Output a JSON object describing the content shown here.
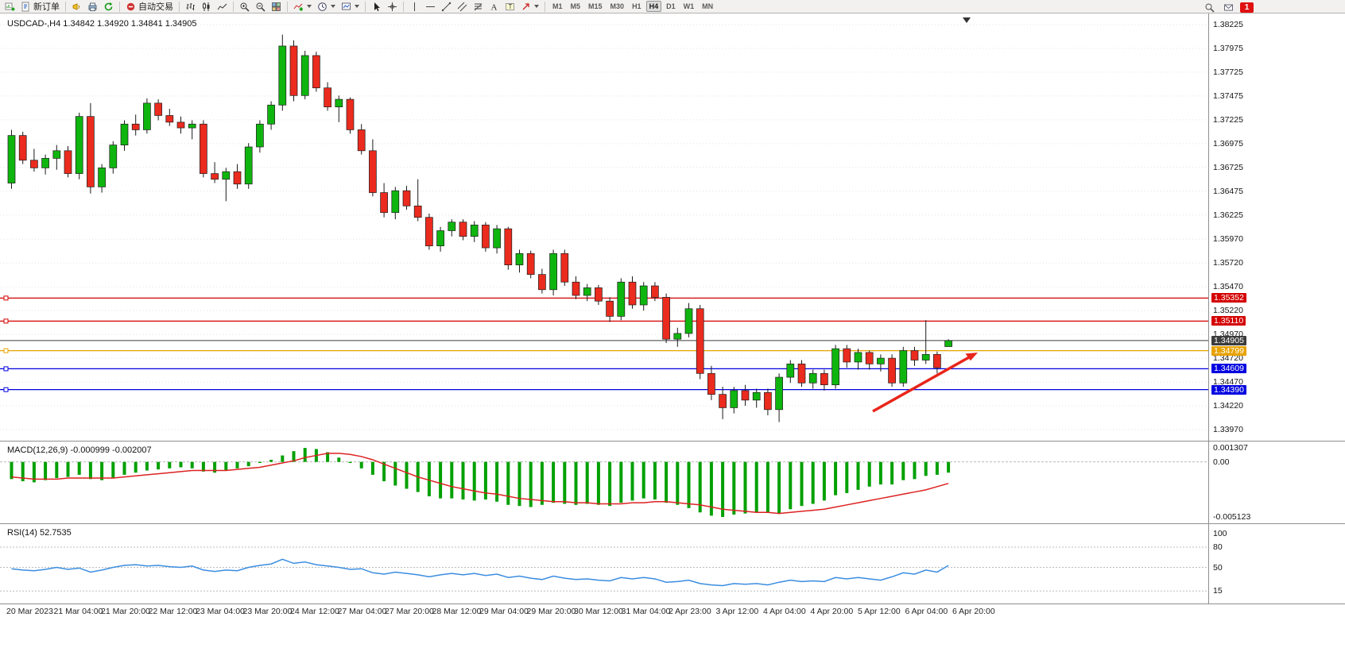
{
  "app": {
    "notification_count": "1"
  },
  "toolbar": {
    "new_order_label": "新订单",
    "autotrading_label": "自动交易",
    "timeframes": [
      "M1",
      "M5",
      "M15",
      "M30",
      "H1",
      "H4",
      "D1",
      "W1",
      "MN"
    ],
    "active_timeframe": "H4",
    "icons": [
      "new-chart-icon",
      "new-order-icon",
      "alerts-icon",
      "print-icon",
      "refresh-icon",
      "autotrading-icon",
      "bar-chart-icon",
      "candlestick-chart-icon",
      "line-chart-icon",
      "zoom-in-icon",
      "zoom-out-icon",
      "tile-windows-icon",
      "indicators-icon",
      "periods-icon",
      "templates-icon",
      "cursor-icon",
      "crosshair-icon",
      "vertical-line-icon",
      "horizontal-line-icon",
      "trendline-icon",
      "channel-icon",
      "fibonacci-icon",
      "text-icon",
      "text-label-icon",
      "arrows-icon",
      "search-icon",
      "mail-icon"
    ]
  },
  "chart": {
    "title": "USDCAD-,H4 1.34842 1.34920 1.34841 1.34905",
    "symbol": "USDCAD-",
    "period": "H4",
    "ohlc": {
      "open": "1.34842",
      "high": "1.34920",
      "low": "1.34841",
      "close": "1.34905"
    }
  },
  "indicators": {
    "macd_label": "MACD(12,26,9) -0.000999 -0.002007",
    "rsi_label": "RSI(14) 52.7535"
  },
  "time_axis": [
    "20 Mar 2023",
    "21 Mar 04:00",
    "21 Mar 20:00",
    "22 Mar 12:00",
    "23 Mar 04:00",
    "23 Mar 20:00",
    "24 Mar 12:00",
    "27 Mar 04:00",
    "27 Mar 20:00",
    "28 Mar 12:00",
    "29 Mar 04:00",
    "29 Mar 20:00",
    "30 Mar 12:00",
    "31 Mar 04:00",
    "2 Apr 23:00",
    "3 Apr 12:00",
    "4 Apr 04:00",
    "4 Apr 20:00",
    "5 Apr 12:00",
    "6 Apr 04:00",
    "6 Apr 20:00"
  ],
  "chart_data": [
    {
      "type": "candlestick",
      "symbol": "USDCAD-",
      "timeframe": "H4",
      "ylim": [
        1.3397,
        1.38225
      ],
      "scale_labels": [
        "1.38225",
        "1.37975",
        "1.37725",
        "1.37475",
        "1.37225",
        "1.36975",
        "1.36725",
        "1.36475",
        "1.36225",
        "1.35970",
        "1.35720",
        "1.35470",
        "1.35220",
        "1.34970",
        "1.34720",
        "1.34470",
        "1.34220",
        "1.33970"
      ],
      "up_color": "#0fb50f",
      "down_color": "#ea2b1e",
      "wick_color": "#1a1a1a",
      "hlines": [
        {
          "price": 1.35352,
          "label": "1.35352",
          "color": "#d40000"
        },
        {
          "price": 1.3511,
          "label": "1.35110",
          "color": "#d40000"
        },
        {
          "price": 1.34905,
          "label": "1.34905",
          "color": "#3c3c3c",
          "role": "bid"
        },
        {
          "price": 1.34799,
          "label": "1.34799",
          "color": "#e8a200"
        },
        {
          "price": 1.34609,
          "label": "1.34609",
          "color": "#0000e0"
        },
        {
          "price": 1.3439,
          "label": "1.34390",
          "color": "#0000e0"
        }
      ],
      "arrow_annotation": {
        "color": "#e8251b",
        "direction": "up-right"
      },
      "candles": [
        [
          1.3656,
          1.3712,
          1.365,
          1.3706
        ],
        [
          1.3706,
          1.371,
          1.3676,
          1.368
        ],
        [
          1.368,
          1.3692,
          1.3668,
          1.3672
        ],
        [
          1.3672,
          1.3686,
          1.3665,
          1.3682
        ],
        [
          1.3682,
          1.3696,
          1.367,
          1.369
        ],
        [
          1.369,
          1.3695,
          1.3662,
          1.3666
        ],
        [
          1.3666,
          1.373,
          1.366,
          1.3726
        ],
        [
          1.3726,
          1.374,
          1.3645,
          1.3652
        ],
        [
          1.3652,
          1.3676,
          1.3646,
          1.3672
        ],
        [
          1.3672,
          1.37,
          1.3666,
          1.3696
        ],
        [
          1.3696,
          1.3722,
          1.369,
          1.3718
        ],
        [
          1.3718,
          1.3728,
          1.3706,
          1.3712
        ],
        [
          1.3712,
          1.3745,
          1.3708,
          1.374
        ],
        [
          1.374,
          1.3744,
          1.3722,
          1.3727
        ],
        [
          1.3727,
          1.3734,
          1.3716,
          1.372
        ],
        [
          1.372,
          1.3726,
          1.3708,
          1.3714
        ],
        [
          1.3714,
          1.3722,
          1.3702,
          1.3718
        ],
        [
          1.3718,
          1.3722,
          1.3662,
          1.3666
        ],
        [
          1.3666,
          1.3678,
          1.3656,
          1.366
        ],
        [
          1.366,
          1.3672,
          1.3637,
          1.3668
        ],
        [
          1.3668,
          1.3676,
          1.365,
          1.3655
        ],
        [
          1.3655,
          1.3698,
          1.365,
          1.3694
        ],
        [
          1.3694,
          1.3722,
          1.3688,
          1.3718
        ],
        [
          1.3718,
          1.3742,
          1.3712,
          1.3738
        ],
        [
          1.3738,
          1.3812,
          1.3732,
          1.38
        ],
        [
          1.38,
          1.3806,
          1.3742,
          1.3748
        ],
        [
          1.3748,
          1.3795,
          1.3744,
          1.379
        ],
        [
          1.379,
          1.3794,
          1.3752,
          1.3756
        ],
        [
          1.3756,
          1.3762,
          1.3732,
          1.3736
        ],
        [
          1.3736,
          1.3748,
          1.372,
          1.3744
        ],
        [
          1.3744,
          1.3746,
          1.3708,
          1.3712
        ],
        [
          1.3712,
          1.3718,
          1.3686,
          1.369
        ],
        [
          1.369,
          1.3702,
          1.3642,
          1.3646
        ],
        [
          1.3646,
          1.3656,
          1.362,
          1.3625
        ],
        [
          1.3625,
          1.3652,
          1.3618,
          1.3648
        ],
        [
          1.3648,
          1.3653,
          1.3628,
          1.3632
        ],
        [
          1.3632,
          1.366,
          1.3616,
          1.362
        ],
        [
          1.362,
          1.3624,
          1.3586,
          1.359
        ],
        [
          1.359,
          1.361,
          1.3584,
          1.3606
        ],
        [
          1.3606,
          1.3618,
          1.36,
          1.3615
        ],
        [
          1.3615,
          1.3618,
          1.3596,
          1.36
        ],
        [
          1.36,
          1.3616,
          1.3594,
          1.3612
        ],
        [
          1.3612,
          1.3615,
          1.3584,
          1.3588
        ],
        [
          1.3588,
          1.3612,
          1.3582,
          1.3608
        ],
        [
          1.3608,
          1.361,
          1.3565,
          1.357
        ],
        [
          1.357,
          1.3586,
          1.3562,
          1.3582
        ],
        [
          1.3582,
          1.3585,
          1.3556,
          1.356
        ],
        [
          1.356,
          1.3566,
          1.354,
          1.3544
        ],
        [
          1.3544,
          1.3586,
          1.3538,
          1.3582
        ],
        [
          1.3582,
          1.3586,
          1.3548,
          1.3552
        ],
        [
          1.3552,
          1.3558,
          1.3534,
          1.3538
        ],
        [
          1.3538,
          1.355,
          1.3532,
          1.3546
        ],
        [
          1.3546,
          1.3549,
          1.3528,
          1.3532
        ],
        [
          1.3532,
          1.3536,
          1.351,
          1.3516
        ],
        [
          1.3516,
          1.3556,
          1.3512,
          1.3552
        ],
        [
          1.3552,
          1.3558,
          1.3524,
          1.3528
        ],
        [
          1.3528,
          1.3552,
          1.3522,
          1.3548
        ],
        [
          1.3548,
          1.3552,
          1.3532,
          1.3536
        ],
        [
          1.3536,
          1.354,
          1.3488,
          1.3492
        ],
        [
          1.3492,
          1.3504,
          1.3484,
          1.3498
        ],
        [
          1.3498,
          1.353,
          1.3494,
          1.3524
        ],
        [
          1.3524,
          1.3528,
          1.345,
          1.3456
        ],
        [
          1.3456,
          1.3464,
          1.3428,
          1.3434
        ],
        [
          1.3434,
          1.3442,
          1.3408,
          1.342
        ],
        [
          1.342,
          1.3442,
          1.3414,
          1.3438
        ],
        [
          1.3438,
          1.3444,
          1.3422,
          1.3428
        ],
        [
          1.3428,
          1.344,
          1.342,
          1.3436
        ],
        [
          1.3436,
          1.344,
          1.3412,
          1.3418
        ],
        [
          1.3418,
          1.3456,
          1.3405,
          1.3452
        ],
        [
          1.3452,
          1.347,
          1.3446,
          1.3466
        ],
        [
          1.3466,
          1.347,
          1.3442,
          1.3446
        ],
        [
          1.3446,
          1.346,
          1.344,
          1.3456
        ],
        [
          1.3456,
          1.346,
          1.3438,
          1.3444
        ],
        [
          1.3444,
          1.3486,
          1.344,
          1.3482
        ],
        [
          1.3482,
          1.3486,
          1.3462,
          1.3468
        ],
        [
          1.3468,
          1.3482,
          1.346,
          1.3478
        ],
        [
          1.3478,
          1.348,
          1.346,
          1.3466
        ],
        [
          1.3466,
          1.3476,
          1.3458,
          1.3472
        ],
        [
          1.3472,
          1.3476,
          1.3442,
          1.3446
        ],
        [
          1.3446,
          1.3484,
          1.3442,
          1.348
        ],
        [
          1.348,
          1.3484,
          1.3464,
          1.347
        ],
        [
          1.347,
          1.3512,
          1.3466,
          1.3476
        ],
        [
          1.3476,
          1.3479,
          1.3456,
          1.3462
        ],
        [
          1.34842,
          1.3492,
          1.34841,
          1.34905
        ]
      ]
    },
    {
      "type": "bar+line",
      "name": "MACD(12,26,9)",
      "current_values": [
        "-0.000999",
        "-0.002007"
      ],
      "scale_labels": [
        "0.001307",
        "0.00",
        "-0.005123"
      ],
      "ylim": [
        -0.005123,
        0.001307
      ],
      "histogram_color": "#00a000",
      "signal_color": "#dd2222",
      "histogram": [
        -0.0016,
        -0.0018,
        -0.0019,
        -0.0017,
        -0.0015,
        -0.0014,
        -0.0012,
        -0.0016,
        -0.0017,
        -0.0015,
        -0.0012,
        -0.001,
        -0.0008,
        -0.0007,
        -0.0006,
        -0.0005,
        -0.0006,
        -0.0009,
        -0.001,
        -0.0008,
        -0.0006,
        -0.0004,
        -0.0001,
        0.0002,
        0.0006,
        0.001,
        0.0013,
        0.0012,
        0.0009,
        0.0004,
        -0.0001,
        -0.0006,
        -0.0012,
        -0.0018,
        -0.0022,
        -0.0025,
        -0.0028,
        -0.0032,
        -0.0034,
        -0.0034,
        -0.0035,
        -0.0036,
        -0.0035,
        -0.0037,
        -0.004,
        -0.0041,
        -0.0042,
        -0.004,
        -0.0038,
        -0.0039,
        -0.004,
        -0.0039,
        -0.004,
        -0.0041,
        -0.0038,
        -0.0036,
        -0.0034,
        -0.0035,
        -0.0038,
        -0.004,
        -0.0043,
        -0.0047,
        -0.005,
        -0.005123,
        -0.0049,
        -0.0048,
        -0.0047,
        -0.0047,
        -0.0048,
        -0.0044,
        -0.0041,
        -0.0039,
        -0.0036,
        -0.0031,
        -0.0029,
        -0.0026,
        -0.0023,
        -0.0021,
        -0.0021,
        -0.0017,
        -0.0016,
        -0.0013,
        -0.0012,
        -0.000999
      ],
      "signal": [
        -0.0014,
        -0.0015,
        -0.0016,
        -0.0016,
        -0.0016,
        -0.0015,
        -0.0015,
        -0.0015,
        -0.0015,
        -0.0015,
        -0.0014,
        -0.0013,
        -0.0012,
        -0.0011,
        -0.001,
        -0.0009,
        -0.0008,
        -0.0008,
        -0.0008,
        -0.0008,
        -0.0007,
        -0.0006,
        -0.0005,
        -0.0003,
        -0.0001,
        0.0001,
        0.0004,
        0.0006,
        0.0008,
        0.0008,
        0.0007,
        0.0005,
        0.0002,
        -0.0002,
        -0.0006,
        -0.001,
        -0.0014,
        -0.0017,
        -0.002,
        -0.0023,
        -0.0025,
        -0.0027,
        -0.0029,
        -0.003,
        -0.0032,
        -0.0034,
        -0.0035,
        -0.0036,
        -0.0037,
        -0.0037,
        -0.0038,
        -0.0038,
        -0.0039,
        -0.0039,
        -0.0039,
        -0.0038,
        -0.0038,
        -0.0037,
        -0.0037,
        -0.0038,
        -0.0039,
        -0.004,
        -0.0042,
        -0.0044,
        -0.0045,
        -0.0046,
        -0.0047,
        -0.0047,
        -0.0048,
        -0.0047,
        -0.0046,
        -0.0045,
        -0.0044,
        -0.0042,
        -0.004,
        -0.0038,
        -0.0036,
        -0.0034,
        -0.0032,
        -0.003,
        -0.0028,
        -0.0026,
        -0.0023,
        -0.002007
      ]
    },
    {
      "type": "line",
      "name": "RSI(14)",
      "current_value": "52.7535",
      "levels": [
        80,
        50,
        15
      ],
      "scale_labels": [
        "100",
        "80",
        "50",
        "15"
      ],
      "ylim": [
        0,
        100
      ],
      "line_color": "#3b8de0",
      "values": [
        48,
        46,
        45,
        47,
        50,
        47,
        49,
        43,
        46,
        50,
        53,
        54,
        52,
        53,
        51,
        50,
        52,
        46,
        44,
        46,
        45,
        50,
        53,
        55,
        62,
        56,
        58,
        54,
        52,
        50,
        47,
        48,
        42,
        40,
        43,
        41,
        39,
        36,
        39,
        41,
        39,
        41,
        38,
        40,
        35,
        37,
        34,
        32,
        37,
        34,
        32,
        33,
        31,
        30,
        35,
        33,
        35,
        33,
        28,
        29,
        31,
        26,
        24,
        23,
        26,
        25,
        26,
        24,
        28,
        31,
        29,
        30,
        29,
        35,
        33,
        35,
        33,
        31,
        36,
        42,
        40,
        46,
        43,
        52.7535
      ]
    }
  ]
}
